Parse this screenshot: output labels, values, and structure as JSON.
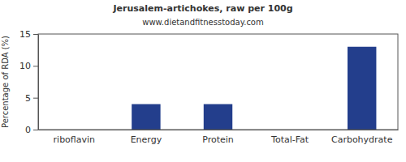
{
  "chart_data": {
    "type": "bar",
    "title": "Jerusalem-artichokes, raw per 100g",
    "subtitle": "www.dietandfitnesstoday.com",
    "y_label": "Percentage of RDA (%)",
    "categories": [
      "riboflavin",
      "Energy",
      "Protein",
      "Total-Fat",
      "Carbohydrate"
    ],
    "values": [
      0,
      4,
      4,
      0,
      13
    ],
    "color": "#233e8c",
    "ylim": [
      0,
      15
    ],
    "yticks": [
      0,
      5,
      10,
      15
    ],
    "grid": false
  }
}
